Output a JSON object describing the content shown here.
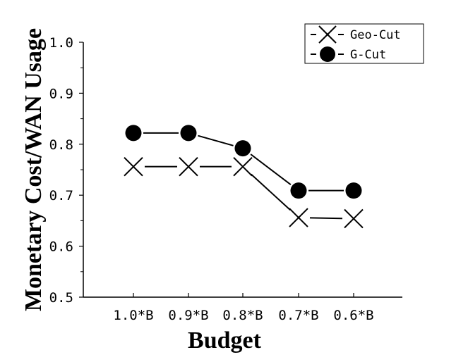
{
  "chart_data": {
    "type": "line",
    "categories": [
      "1.0*B",
      "0.9*B",
      "0.8*B",
      "0.7*B",
      "0.6*B"
    ],
    "series": [
      {
        "name": "Geo-Cut",
        "marker": "x",
        "values": [
          0.756,
          0.756,
          0.756,
          0.656,
          0.654
        ]
      },
      {
        "name": "G-Cut",
        "marker": "circle",
        "values": [
          0.822,
          0.822,
          0.792,
          0.709,
          0.709
        ]
      }
    ],
    "xlabel": "Budget",
    "ylabel": "Monetary Cost/WAN Usage",
    "ylim": [
      0.5,
      1.0
    ],
    "yticks": [
      "0.5",
      "0.6",
      "0.7",
      "0.8",
      "0.9",
      "1.0"
    ],
    "grid": false,
    "legend_position": "top-right",
    "color": "#000000"
  }
}
